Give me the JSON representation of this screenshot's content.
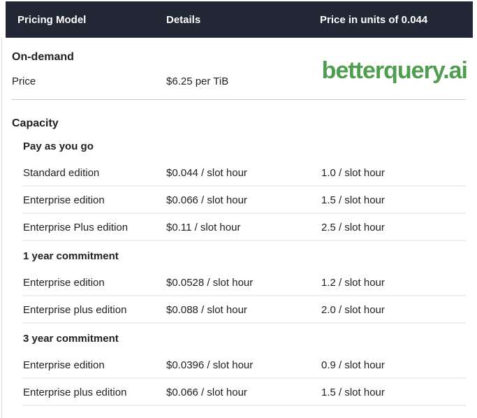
{
  "watermark": {
    "text": "betterquery.ai",
    "color": "#4f9d4f"
  },
  "colors": {
    "header_bg": "#212734",
    "header_text": "#ffffff",
    "body_text": "#202124",
    "divider_light": "#edeef0",
    "divider_dark": "#c7cbd0"
  },
  "table": {
    "col_headers": [
      "Pricing Model",
      "Details",
      "Price in units of 0.044"
    ],
    "on_demand": {
      "title": "On-demand",
      "rows": [
        {
          "label": "Price",
          "details": "$6.25 per TiB",
          "price_units": ""
        }
      ]
    },
    "capacity": {
      "title": "Capacity",
      "groups": [
        {
          "title": "Pay as you go",
          "rows": [
            {
              "label": "Standard edition",
              "details": "$0.044 / slot hour",
              "price_units": "1.0 / slot hour"
            },
            {
              "label": "Enterprise edition",
              "details": "$0.066 / slot hour",
              "price_units": "1.5 / slot hour"
            },
            {
              "label": "Enterprise Plus edition",
              "details": "$0.11 / slot hour",
              "price_units": "2.5 / slot hour"
            }
          ]
        },
        {
          "title": "1 year commitment",
          "rows": [
            {
              "label": "Enterprise edition",
              "details": "$0.0528 / slot hour",
              "price_units": "1.2 / slot hour"
            },
            {
              "label": "Enterprise plus edition",
              "details": "$0.088 / slot hour",
              "price_units": "2.0 / slot hour"
            }
          ]
        },
        {
          "title": "3 year commitment",
          "rows": [
            {
              "label": "Enterprise edition",
              "details": "$0.0396 / slot hour",
              "price_units": "0.9 / slot hour"
            },
            {
              "label": "Enterprise plus edition",
              "details": "$0.066 / slot hour",
              "price_units": "1.5 / slot hour"
            }
          ]
        }
      ]
    }
  }
}
